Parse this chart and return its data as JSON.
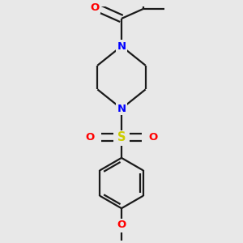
{
  "background_color": "#e8e8e8",
  "bond_color": "#1a1a1a",
  "N_color": "#0000ff",
  "O_color": "#ff0000",
  "S_color": "#cccc00",
  "line_width": 1.6,
  "figsize": [
    3.0,
    3.0
  ],
  "dpi": 100,
  "xlim": [
    -0.55,
    0.55
  ],
  "ylim": [
    -1.1,
    0.85
  ]
}
